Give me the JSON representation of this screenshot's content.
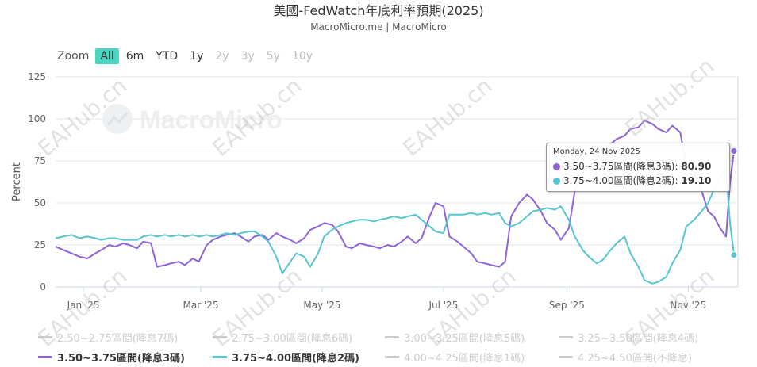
{
  "title": "美國-FedWatch年底利率預期(2025)",
  "subtitle": "MacroMicro.me | MacroMicro",
  "watermark": "MacroMicro",
  "overlay_watermark": "EAHub.cn",
  "range_selector": {
    "zoom_label": "Zoom",
    "buttons": [
      {
        "label": "All",
        "state": "active"
      },
      {
        "label": "6m",
        "state": "normal"
      },
      {
        "label": "YTD",
        "state": "normal"
      },
      {
        "label": "1y",
        "state": "normal"
      },
      {
        "label": "2y",
        "state": "disabled"
      },
      {
        "label": "3y",
        "state": "disabled"
      },
      {
        "label": "5y",
        "state": "disabled"
      },
      {
        "label": "10y",
        "state": "disabled"
      }
    ]
  },
  "tooltip": {
    "date": "Monday, 24 Nov 2025",
    "rows": [
      {
        "label": "3.50~3.75區間(降息3碼): ",
        "value": "80.90",
        "color": "#8f63d9"
      },
      {
        "label": "3.75~4.00區間(降息2碼): ",
        "value": "19.10",
        "color": "#55c6d1"
      }
    ]
  },
  "chart_data": {
    "type": "line",
    "ylabel": "Percent",
    "ylim": [
      0,
      125
    ],
    "yticks": [
      0,
      25,
      50,
      75,
      100,
      125
    ],
    "xlim": [
      "2024-12-18",
      "2025-11-26"
    ],
    "xticks": [
      {
        "date": "2025-01-01",
        "label": "Jan '25"
      },
      {
        "date": "2025-03-01",
        "label": "Mar '25"
      },
      {
        "date": "2025-05-01",
        "label": "May '25"
      },
      {
        "date": "2025-07-01",
        "label": "Jul '25"
      },
      {
        "date": "2025-09-01",
        "label": "Sep '25"
      },
      {
        "date": "2025-11-01",
        "label": "Nov '25"
      }
    ],
    "grid": "horizontal",
    "crosshair_y": 80.9,
    "series": [
      {
        "name": "2.50~2.75區間(降息7碼)",
        "color": "#cccccc",
        "visible": false,
        "points": []
      },
      {
        "name": "2.75~3.00區間(降息6碼)",
        "color": "#cccccc",
        "visible": false,
        "points": []
      },
      {
        "name": "3.00~3.25區間(降息5碼)",
        "color": "#cccccc",
        "visible": false,
        "points": []
      },
      {
        "name": "3.25~3.50區間(降息4碼)",
        "color": "#cccccc",
        "visible": false,
        "points": []
      },
      {
        "name": "3.50~3.75區間(降息3碼)",
        "color": "#8f63d9",
        "visible": true,
        "points": [
          [
            "2024-12-18",
            24
          ],
          [
            "2024-12-22",
            22
          ],
          [
            "2024-12-26",
            20
          ],
          [
            "2024-12-30",
            18
          ],
          [
            "2025-01-03",
            17
          ],
          [
            "2025-01-07",
            20
          ],
          [
            "2025-01-10",
            22
          ],
          [
            "2025-01-14",
            25
          ],
          [
            "2025-01-17",
            24
          ],
          [
            "2025-01-21",
            26
          ],
          [
            "2025-01-24",
            25
          ],
          [
            "2025-01-28",
            23
          ],
          [
            "2025-01-31",
            27
          ],
          [
            "2025-02-04",
            26
          ],
          [
            "2025-02-07",
            12
          ],
          [
            "2025-02-11",
            13
          ],
          [
            "2025-02-14",
            14
          ],
          [
            "2025-02-18",
            15
          ],
          [
            "2025-02-21",
            13
          ],
          [
            "2025-02-25",
            17
          ],
          [
            "2025-02-28",
            15
          ],
          [
            "2025-03-04",
            25
          ],
          [
            "2025-03-07",
            28
          ],
          [
            "2025-03-11",
            30
          ],
          [
            "2025-03-14",
            31
          ],
          [
            "2025-03-18",
            32
          ],
          [
            "2025-03-21",
            30
          ],
          [
            "2025-03-25",
            27
          ],
          [
            "2025-03-28",
            30
          ],
          [
            "2025-04-01",
            31
          ],
          [
            "2025-04-04",
            28
          ],
          [
            "2025-04-08",
            32
          ],
          [
            "2025-04-11",
            30
          ],
          [
            "2025-04-15",
            28
          ],
          [
            "2025-04-18",
            26
          ],
          [
            "2025-04-22",
            29
          ],
          [
            "2025-04-25",
            34
          ],
          [
            "2025-04-29",
            36
          ],
          [
            "2025-05-02",
            38
          ],
          [
            "2025-05-06",
            37
          ],
          [
            "2025-05-09",
            33
          ],
          [
            "2025-05-13",
            24
          ],
          [
            "2025-05-16",
            23
          ],
          [
            "2025-05-20",
            26
          ],
          [
            "2025-05-23",
            25
          ],
          [
            "2025-05-27",
            24
          ],
          [
            "2025-05-30",
            23
          ],
          [
            "2025-06-03",
            25
          ],
          [
            "2025-06-06",
            24
          ],
          [
            "2025-06-10",
            27
          ],
          [
            "2025-06-13",
            30
          ],
          [
            "2025-06-17",
            26
          ],
          [
            "2025-06-20",
            29
          ],
          [
            "2025-06-24",
            42
          ],
          [
            "2025-06-27",
            50
          ],
          [
            "2025-07-01",
            48
          ],
          [
            "2025-07-04",
            30
          ],
          [
            "2025-07-08",
            27
          ],
          [
            "2025-07-11",
            24
          ],
          [
            "2025-07-15",
            20
          ],
          [
            "2025-07-18",
            15
          ],
          [
            "2025-07-22",
            14
          ],
          [
            "2025-07-25",
            13
          ],
          [
            "2025-07-29",
            12
          ],
          [
            "2025-08-01",
            15
          ],
          [
            "2025-08-04",
            42
          ],
          [
            "2025-08-08",
            50
          ],
          [
            "2025-08-12",
            55
          ],
          [
            "2025-08-15",
            52
          ],
          [
            "2025-08-19",
            45
          ],
          [
            "2025-08-22",
            38
          ],
          [
            "2025-08-26",
            34
          ],
          [
            "2025-08-29",
            28
          ],
          [
            "2025-09-02",
            35
          ],
          [
            "2025-09-05",
            57
          ],
          [
            "2025-09-09",
            68
          ],
          [
            "2025-09-12",
            72
          ],
          [
            "2025-09-16",
            76
          ],
          [
            "2025-09-19",
            82
          ],
          [
            "2025-09-23",
            85
          ],
          [
            "2025-09-26",
            88
          ],
          [
            "2025-09-30",
            90
          ],
          [
            "2025-10-03",
            94
          ],
          [
            "2025-10-07",
            95
          ],
          [
            "2025-10-10",
            99
          ],
          [
            "2025-10-14",
            97
          ],
          [
            "2025-10-17",
            94
          ],
          [
            "2025-10-21",
            92
          ],
          [
            "2025-10-24",
            96
          ],
          [
            "2025-10-28",
            92
          ],
          [
            "2025-10-31",
            72
          ],
          [
            "2025-11-04",
            68
          ],
          [
            "2025-11-07",
            60
          ],
          [
            "2025-11-11",
            45
          ],
          [
            "2025-11-14",
            42
          ],
          [
            "2025-11-17",
            35
          ],
          [
            "2025-11-20",
            30
          ],
          [
            "2025-11-22",
            62
          ],
          [
            "2025-11-24",
            80.9
          ]
        ]
      },
      {
        "name": "3.75~4.00區間(降息2碼)",
        "color": "#55c6d1",
        "visible": true,
        "points": [
          [
            "2024-12-18",
            29
          ],
          [
            "2024-12-22",
            30
          ],
          [
            "2024-12-26",
            31
          ],
          [
            "2024-12-30",
            29
          ],
          [
            "2025-01-03",
            30
          ],
          [
            "2025-01-07",
            29
          ],
          [
            "2025-01-10",
            28
          ],
          [
            "2025-01-14",
            29
          ],
          [
            "2025-01-17",
            29
          ],
          [
            "2025-01-21",
            28
          ],
          [
            "2025-01-24",
            28
          ],
          [
            "2025-01-28",
            28
          ],
          [
            "2025-01-31",
            30
          ],
          [
            "2025-02-04",
            31
          ],
          [
            "2025-02-07",
            30
          ],
          [
            "2025-02-11",
            31
          ],
          [
            "2025-02-14",
            30
          ],
          [
            "2025-02-18",
            31
          ],
          [
            "2025-02-21",
            30
          ],
          [
            "2025-02-25",
            31
          ],
          [
            "2025-02-28",
            30
          ],
          [
            "2025-03-04",
            31
          ],
          [
            "2025-03-07",
            30
          ],
          [
            "2025-03-11",
            31
          ],
          [
            "2025-03-14",
            32
          ],
          [
            "2025-03-18",
            31
          ],
          [
            "2025-03-21",
            32
          ],
          [
            "2025-03-25",
            33
          ],
          [
            "2025-03-28",
            33
          ],
          [
            "2025-04-01",
            30
          ],
          [
            "2025-04-04",
            27
          ],
          [
            "2025-04-08",
            18
          ],
          [
            "2025-04-11",
            8
          ],
          [
            "2025-04-15",
            15
          ],
          [
            "2025-04-18",
            20
          ],
          [
            "2025-04-22",
            18
          ],
          [
            "2025-04-25",
            12
          ],
          [
            "2025-04-29",
            20
          ],
          [
            "2025-05-02",
            30
          ],
          [
            "2025-05-06",
            34
          ],
          [
            "2025-05-09",
            36
          ],
          [
            "2025-05-13",
            38
          ],
          [
            "2025-05-16",
            39
          ],
          [
            "2025-05-20",
            40
          ],
          [
            "2025-05-23",
            40
          ],
          [
            "2025-05-27",
            39
          ],
          [
            "2025-05-30",
            40
          ],
          [
            "2025-06-03",
            41
          ],
          [
            "2025-06-06",
            42
          ],
          [
            "2025-06-10",
            41
          ],
          [
            "2025-06-13",
            42
          ],
          [
            "2025-06-17",
            43
          ],
          [
            "2025-06-20",
            40
          ],
          [
            "2025-06-24",
            36
          ],
          [
            "2025-06-27",
            33
          ],
          [
            "2025-07-01",
            32
          ],
          [
            "2025-07-04",
            43
          ],
          [
            "2025-07-08",
            43
          ],
          [
            "2025-07-11",
            43
          ],
          [
            "2025-07-15",
            44
          ],
          [
            "2025-07-18",
            43
          ],
          [
            "2025-07-22",
            44
          ],
          [
            "2025-07-25",
            43
          ],
          [
            "2025-07-29",
            44
          ],
          [
            "2025-08-01",
            38
          ],
          [
            "2025-08-04",
            36
          ],
          [
            "2025-08-08",
            38
          ],
          [
            "2025-08-12",
            42
          ],
          [
            "2025-08-15",
            45
          ],
          [
            "2025-08-19",
            46
          ],
          [
            "2025-08-22",
            47
          ],
          [
            "2025-08-26",
            46
          ],
          [
            "2025-08-29",
            48
          ],
          [
            "2025-09-02",
            40
          ],
          [
            "2025-09-05",
            30
          ],
          [
            "2025-09-09",
            22
          ],
          [
            "2025-09-12",
            18
          ],
          [
            "2025-09-16",
            14
          ],
          [
            "2025-09-19",
            16
          ],
          [
            "2025-09-23",
            22
          ],
          [
            "2025-09-26",
            26
          ],
          [
            "2025-09-30",
            30
          ],
          [
            "2025-10-03",
            20
          ],
          [
            "2025-10-07",
            12
          ],
          [
            "2025-10-10",
            4
          ],
          [
            "2025-10-14",
            2
          ],
          [
            "2025-10-17",
            3
          ],
          [
            "2025-10-21",
            6
          ],
          [
            "2025-10-24",
            14
          ],
          [
            "2025-10-28",
            22
          ],
          [
            "2025-10-31",
            36
          ],
          [
            "2025-11-04",
            40
          ],
          [
            "2025-11-07",
            44
          ],
          [
            "2025-11-11",
            50
          ],
          [
            "2025-11-14",
            58
          ],
          [
            "2025-11-17",
            65
          ],
          [
            "2025-11-20",
            70
          ],
          [
            "2025-11-22",
            38
          ],
          [
            "2025-11-24",
            19.1
          ]
        ]
      },
      {
        "name": "4.00~4.25區間(降息1碼)",
        "color": "#cccccc",
        "visible": false,
        "points": []
      },
      {
        "name": "4.25~4.50區間(不降息)",
        "color": "#cccccc",
        "visible": false,
        "points": []
      }
    ]
  }
}
